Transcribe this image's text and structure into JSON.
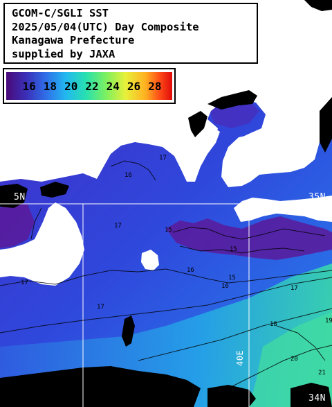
{
  "title": {
    "line1": "GCOM-C/SGLI SST",
    "line2": "2025/05/04(UTC) Day Composite",
    "line3": "Kanagawa Prefecture",
    "line4": "supplied by JAXA"
  },
  "legend": {
    "labels": [
      "16",
      "18",
      "20",
      "22",
      "24",
      "26",
      "28"
    ],
    "gradient_colors": [
      "#4a0a78",
      "#3a2fb8",
      "#2f6fe8",
      "#22b8f0",
      "#28e0b0",
      "#7cf060",
      "#e8f03a",
      "#ffb020",
      "#ff5018",
      "#e00a0a"
    ]
  },
  "map_labels": {
    "lat_35_left": "5N",
    "lat_35_right": "35N",
    "lat_34": "34N",
    "lon_140": "40E"
  },
  "contour_labels": [
    "17",
    "16",
    "15",
    "15",
    "15",
    "16",
    "17",
    "17",
    "19",
    "20",
    "21",
    "18",
    "17",
    "16",
    "17"
  ],
  "colors": {
    "land": "#ffffff",
    "cloud": "#000000",
    "sea_cool": "#3a2ad0",
    "sea_warm": "#2a7fe6",
    "gridline": "#ffffff"
  }
}
